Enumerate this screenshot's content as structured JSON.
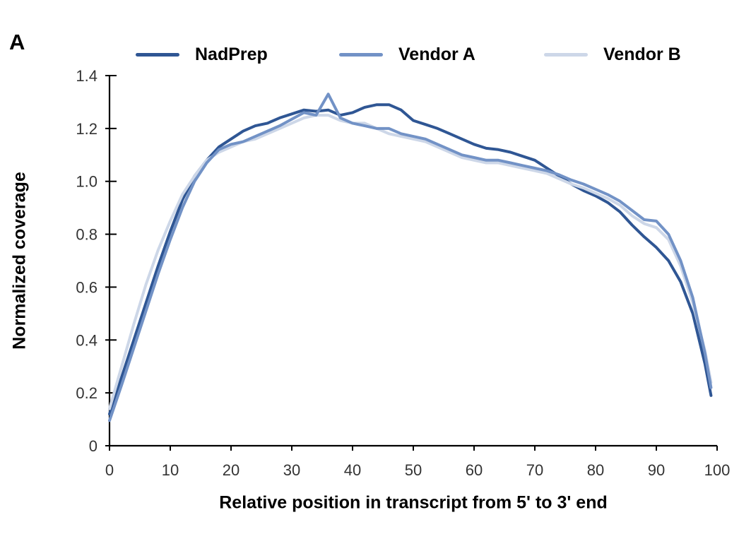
{
  "panel_label": "A",
  "chart_data": {
    "type": "line",
    "title": "",
    "xlabel": "Relative position in transcript from 5' to 3' end",
    "ylabel": "Normalized coverage",
    "xlim": [
      0,
      100
    ],
    "ylim": [
      0,
      1.4
    ],
    "grid": false,
    "legend_position": "top",
    "x_tick_values": [
      0,
      10,
      20,
      30,
      40,
      50,
      60,
      70,
      80,
      90,
      100
    ],
    "x_tick_labels": [
      "0",
      "10",
      "20",
      "30",
      "40",
      "50",
      "60",
      "70",
      "80",
      "90",
      "100"
    ],
    "y_tick_values": [
      0,
      0.2,
      0.4,
      0.6,
      0.8,
      1.0,
      1.2,
      1.4
    ],
    "y_tick_labels": [
      "0",
      "0.2",
      "0.4",
      "0.6",
      "0.8",
      "1.0",
      "1.2",
      "1.4"
    ],
    "x": [
      0,
      2,
      4,
      6,
      8,
      10,
      12,
      14,
      16,
      18,
      20,
      22,
      24,
      26,
      28,
      30,
      32,
      34,
      36,
      38,
      40,
      42,
      44,
      46,
      48,
      50,
      52,
      54,
      56,
      58,
      60,
      62,
      64,
      66,
      68,
      70,
      72,
      74,
      76,
      78,
      80,
      82,
      84,
      86,
      88,
      90,
      92,
      94,
      96,
      98,
      99
    ],
    "series": [
      {
        "name": "NadPrep",
        "color": "#2f5694",
        "values": [
          0.12,
          0.26,
          0.4,
          0.54,
          0.68,
          0.81,
          0.93,
          1.02,
          1.08,
          1.13,
          1.16,
          1.19,
          1.21,
          1.22,
          1.24,
          1.255,
          1.27,
          1.265,
          1.27,
          1.25,
          1.26,
          1.28,
          1.29,
          1.29,
          1.27,
          1.23,
          1.215,
          1.2,
          1.18,
          1.16,
          1.14,
          1.125,
          1.12,
          1.11,
          1.095,
          1.08,
          1.05,
          1.02,
          0.99,
          0.965,
          0.945,
          0.92,
          0.885,
          0.835,
          0.79,
          0.75,
          0.7,
          0.62,
          0.5,
          0.31,
          0.19
        ]
      },
      {
        "name": "Vendor A",
        "color": "#7292c6",
        "values": [
          0.095,
          0.23,
          0.37,
          0.51,
          0.65,
          0.78,
          0.9,
          1.0,
          1.07,
          1.12,
          1.14,
          1.15,
          1.17,
          1.19,
          1.21,
          1.235,
          1.26,
          1.25,
          1.33,
          1.24,
          1.22,
          1.21,
          1.2,
          1.2,
          1.18,
          1.17,
          1.16,
          1.14,
          1.12,
          1.1,
          1.09,
          1.08,
          1.08,
          1.07,
          1.06,
          1.05,
          1.04,
          1.025,
          1.005,
          0.99,
          0.97,
          0.95,
          0.925,
          0.89,
          0.855,
          0.85,
          0.8,
          0.7,
          0.56,
          0.35,
          0.22
        ]
      },
      {
        "name": "Vendor B",
        "color": "#cdd7e8",
        "values": [
          0.14,
          0.3,
          0.46,
          0.61,
          0.74,
          0.85,
          0.95,
          1.02,
          1.08,
          1.11,
          1.13,
          1.15,
          1.16,
          1.18,
          1.2,
          1.22,
          1.24,
          1.25,
          1.25,
          1.23,
          1.22,
          1.22,
          1.2,
          1.18,
          1.17,
          1.16,
          1.15,
          1.13,
          1.11,
          1.09,
          1.08,
          1.07,
          1.07,
          1.06,
          1.05,
          1.04,
          1.03,
          1.01,
          0.99,
          0.975,
          0.955,
          0.935,
          0.91,
          0.87,
          0.84,
          0.825,
          0.78,
          0.68,
          0.54,
          0.36,
          0.24
        ]
      }
    ],
    "draw_order": [
      0,
      2,
      1
    ],
    "axis_color": "#000000",
    "tick_label_color": "#333333"
  }
}
